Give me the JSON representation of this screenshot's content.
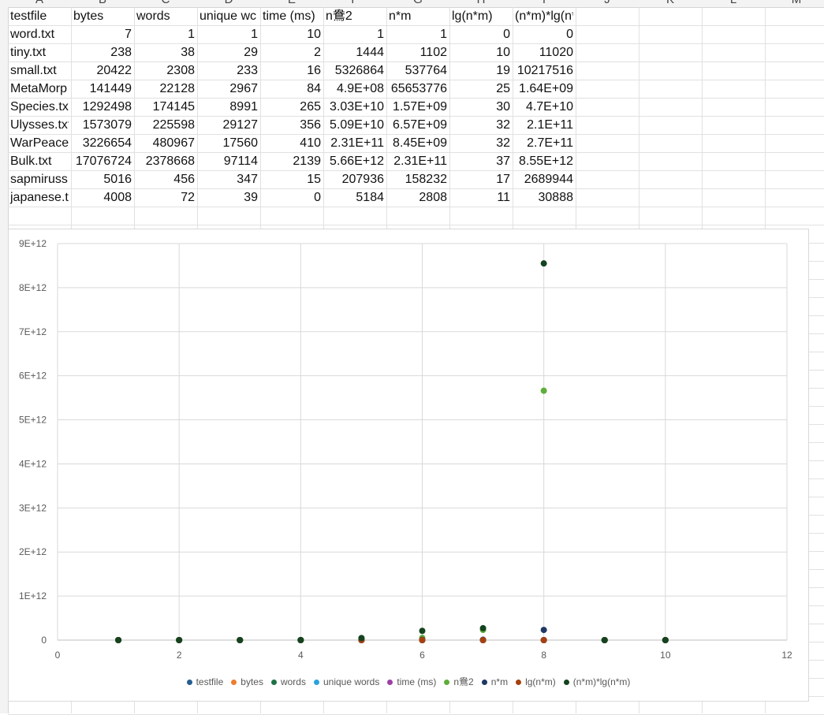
{
  "sheet": {
    "column_letters": [
      "A",
      "B",
      "C",
      "D",
      "E",
      "F",
      "G",
      "H",
      "I",
      "J",
      "K",
      "L",
      "M"
    ],
    "headers": [
      "testfile",
      "bytes",
      "words",
      "unique wc",
      "time (ms)",
      "n鴦2",
      "n*m",
      "lg(n*m)",
      "(n*m)*lg(n*m)"
    ],
    "rows": [
      [
        "word.txt",
        "7",
        "1",
        "1",
        "10",
        "1",
        "1",
        "0",
        "0"
      ],
      [
        "tiny.txt",
        "238",
        "38",
        "29",
        "2",
        "1444",
        "1102",
        "10",
        "11020"
      ],
      [
        "small.txt",
        "20422",
        "2308",
        "233",
        "16",
        "5326864",
        "537764",
        "19",
        "10217516"
      ],
      [
        "MetaMorp",
        "141449",
        "22128",
        "2967",
        "84",
        "4.9E+08",
        "65653776",
        "25",
        "1.64E+09"
      ],
      [
        "Species.txt",
        "1292498",
        "174145",
        "8991",
        "265",
        "3.03E+10",
        "1.57E+09",
        "30",
        "4.7E+10"
      ],
      [
        "Ulysses.txt",
        "1573079",
        "225598",
        "29127",
        "356",
        "5.09E+10",
        "6.57E+09",
        "32",
        "2.1E+11"
      ],
      [
        "WarPeace",
        "3226654",
        "480967",
        "17560",
        "410",
        "2.31E+11",
        "8.45E+09",
        "32",
        "2.7E+11"
      ],
      [
        "Bulk.txt",
        "17076724",
        "2378668",
        "97114",
        "2139",
        "5.66E+12",
        "2.31E+11",
        "37",
        "8.55E+12"
      ],
      [
        "sapmiruss",
        "5016",
        "456",
        "347",
        "15",
        "207936",
        "158232",
        "17",
        "2689944"
      ],
      [
        "japanese.t",
        "4008",
        "72",
        "39",
        "0",
        "5184",
        "2808",
        "11",
        "30888"
      ]
    ]
  },
  "chart_data": {
    "type": "scatter",
    "x": [
      1,
      2,
      3,
      4,
      5,
      6,
      7,
      8,
      9,
      10
    ],
    "xlim": [
      0,
      12
    ],
    "ylim": [
      0,
      9000000000000.0
    ],
    "x_ticks": [
      0,
      2,
      4,
      6,
      8,
      10,
      12
    ],
    "y_ticks": [
      0,
      1000000000000.0,
      2000000000000.0,
      3000000000000.0,
      4000000000000.0,
      5000000000000.0,
      6000000000000.0,
      7000000000000.0,
      8000000000000.0,
      9000000000000.0
    ],
    "y_tick_labels": [
      "0",
      "1E+12",
      "2E+12",
      "3E+12",
      "4E+12",
      "5E+12",
      "6E+12",
      "7E+12",
      "8E+12",
      "9E+12"
    ],
    "grid": true,
    "legend_position": "bottom",
    "series": [
      {
        "name": "testfile",
        "color": "#255e91",
        "values": [
          0,
          0,
          0,
          0,
          0,
          0,
          0,
          0,
          0,
          0
        ]
      },
      {
        "name": "bytes",
        "color": "#ed7d31",
        "values": [
          7,
          238,
          20422,
          141449,
          1292498,
          1573079,
          3226654,
          17076724,
          5016,
          4008
        ]
      },
      {
        "name": "words",
        "color": "#1e7145",
        "values": [
          1,
          38,
          2308,
          22128,
          174145,
          225598,
          480967,
          2378668,
          456,
          72
        ]
      },
      {
        "name": "unique words",
        "color": "#29a3dd",
        "values": [
          1,
          29,
          233,
          2967,
          8991,
          29127,
          17560,
          97114,
          347,
          39
        ]
      },
      {
        "name": "time (ms)",
        "color": "#9e3fa6",
        "values": [
          10,
          2,
          16,
          84,
          265,
          356,
          410,
          2139,
          15,
          0
        ]
      },
      {
        "name": "n鴦2",
        "color": "#5fad3a",
        "values": [
          1,
          1444,
          5326864,
          490000000.0,
          30300000000.0,
          50900000000.0,
          231000000000.0,
          5660000000000.0,
          207936,
          5184
        ]
      },
      {
        "name": "n*m",
        "color": "#1f3864",
        "values": [
          1,
          1102,
          537764,
          65653776,
          1570000000.0,
          6570000000.0,
          8450000000.0,
          231000000000.0,
          158232,
          2808
        ]
      },
      {
        "name": "lg(n*m)",
        "color": "#a5410f",
        "values": [
          0,
          10,
          19,
          25,
          30,
          32,
          32,
          37,
          17,
          11
        ]
      },
      {
        "name": "(n*m)*lg(n*m)",
        "color": "#14431f",
        "values": [
          0,
          11020,
          10217516,
          1640000000.0,
          47000000000.0,
          210000000000.0,
          270000000000.0,
          8550000000000.0,
          2689944,
          30888
        ]
      }
    ]
  }
}
